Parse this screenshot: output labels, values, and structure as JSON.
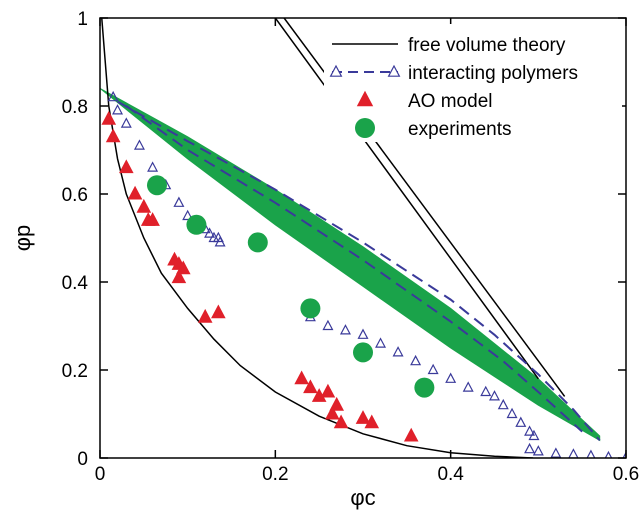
{
  "chart_data": {
    "type": "scatter",
    "title": "",
    "xlabel": "φc",
    "ylabel": "φp",
    "xlim": [
      0,
      0.6
    ],
    "ylim": [
      0,
      1
    ],
    "xticks": [
      "0",
      "0.2",
      "0.4",
      "0.6"
    ],
    "xtick_values": [
      0,
      0.2,
      0.4,
      0.6
    ],
    "yticks": [
      "0",
      "0.2",
      "0.4",
      "0.6",
      "0.8",
      "1"
    ],
    "ytick_values": [
      0,
      0.2,
      0.4,
      0.6,
      0.8,
      1
    ],
    "grid": false,
    "legend_position": "top-right",
    "colors": {
      "free_volume": "#000000",
      "interacting": "#3a3a9a",
      "ao": "#e0202a",
      "experiments": "#1aa34a",
      "band": "#1aa34a"
    },
    "series": [
      {
        "name": "free volume theory",
        "type": "line",
        "curves": [
          {
            "x": [
              0.002,
              0.01,
              0.02,
              0.03,
              0.05,
              0.07,
              0.1,
              0.13,
              0.16,
              0.2,
              0.25,
              0.3,
              0.35,
              0.4,
              0.45,
              0.494
            ],
            "y": [
              1.0,
              0.8,
              0.68,
              0.6,
              0.5,
              0.42,
              0.34,
              0.27,
              0.21,
              0.15,
              0.095,
              0.055,
              0.028,
              0.012,
              0.004,
              0.0
            ]
          },
          {
            "x": [
              0.2,
              0.5
            ],
            "y": [
              1.0,
              0.18
            ]
          },
          {
            "x": [
              0.21,
              0.53
            ],
            "y": [
              1.0,
              0.14
            ]
          }
        ]
      },
      {
        "name": "interacting polymers",
        "type": "line-marker",
        "curves": [
          {
            "x": [
              0.02,
              0.1,
              0.2,
              0.3,
              0.4,
              0.45,
              0.5,
              0.54,
              0.57
            ],
            "y": [
              0.81,
              0.72,
              0.61,
              0.49,
              0.36,
              0.28,
              0.19,
              0.11,
              0.04
            ]
          },
          {
            "x": [
              0.03,
              0.1,
              0.2,
              0.3,
              0.4,
              0.46,
              0.5,
              0.55
            ],
            "y": [
              0.8,
              0.7,
              0.58,
              0.45,
              0.31,
              0.22,
              0.15,
              0.06
            ]
          }
        ],
        "markers": [
          {
            "x": [
              0.015,
              0.02,
              0.03,
              0.045,
              0.06,
              0.075,
              0.09,
              0.1,
              0.11,
              0.12,
              0.125,
              0.13,
              0.135,
              0.137
            ],
            "y": [
              0.82,
              0.79,
              0.76,
              0.71,
              0.66,
              0.62,
              0.58,
              0.55,
              0.53,
              0.52,
              0.51,
              0.5,
              0.5,
              0.49
            ]
          },
          {
            "x": [
              0.24,
              0.26,
              0.28,
              0.3,
              0.32,
              0.34,
              0.36,
              0.38,
              0.4,
              0.42,
              0.44,
              0.45,
              0.46,
              0.47,
              0.48,
              0.49,
              0.495
            ],
            "y": [
              0.32,
              0.3,
              0.29,
              0.28,
              0.26,
              0.24,
              0.22,
              0.2,
              0.18,
              0.16,
              0.15,
              0.14,
              0.12,
              0.1,
              0.08,
              0.06,
              0.05
            ]
          },
          {
            "x": [
              0.49,
              0.5,
              0.52,
              0.54,
              0.56,
              0.58,
              0.6
            ],
            "y": [
              0.02,
              0.015,
              0.01,
              0.008,
              0.005,
              0.002,
              0.001
            ]
          }
        ]
      },
      {
        "name": "AO model",
        "type": "scatter",
        "x": [
          0.01,
          0.015,
          0.03,
          0.04,
          0.05,
          0.055,
          0.06,
          0.085,
          0.09,
          0.09,
          0.095,
          0.12,
          0.135,
          0.23,
          0.24,
          0.25,
          0.26,
          0.265,
          0.27,
          0.275,
          0.3,
          0.31,
          0.355
        ],
        "y": [
          0.77,
          0.73,
          0.66,
          0.6,
          0.57,
          0.54,
          0.54,
          0.45,
          0.44,
          0.41,
          0.43,
          0.32,
          0.33,
          0.18,
          0.16,
          0.14,
          0.15,
          0.1,
          0.12,
          0.08,
          0.09,
          0.08,
          0.05
        ]
      },
      {
        "name": "experiments",
        "type": "scatter",
        "x": [
          0.065,
          0.11,
          0.18,
          0.24,
          0.3,
          0.37
        ],
        "y": [
          0.62,
          0.53,
          0.49,
          0.34,
          0.24,
          0.16
        ]
      }
    ],
    "band": {
      "upper": {
        "x": [
          0.0,
          0.1,
          0.2,
          0.3,
          0.4,
          0.5,
          0.57
        ],
        "y": [
          0.84,
          0.73,
          0.61,
          0.48,
          0.34,
          0.18,
          0.05
        ]
      },
      "lower": {
        "x": [
          0.0,
          0.1,
          0.2,
          0.3,
          0.4,
          0.5,
          0.57
        ],
        "y": [
          0.84,
          0.68,
          0.53,
          0.39,
          0.25,
          0.12,
          0.04
        ]
      }
    }
  }
}
